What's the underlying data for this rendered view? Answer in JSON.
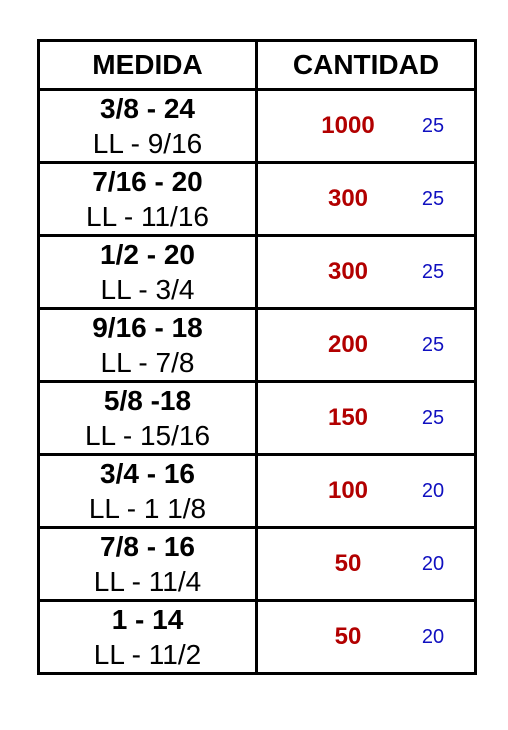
{
  "colors": {
    "border": "#000000",
    "quantity": "#b20000",
    "pack": "#1010c0"
  },
  "table": {
    "headers": [
      "MEDIDA",
      "CANTIDAD"
    ],
    "rows": [
      {
        "measure": "3/8 - 24",
        "wrench": "LL - 9/16",
        "quantity": "1000",
        "pack": "25"
      },
      {
        "measure": "7/16 - 20",
        "wrench": "LL - 11/16",
        "quantity": "300",
        "pack": "25"
      },
      {
        "measure": "1/2 - 20",
        "wrench": "LL - 3/4",
        "quantity": "300",
        "pack": "25"
      },
      {
        "measure": "9/16 - 18",
        "wrench": "LL - 7/8",
        "quantity": "200",
        "pack": "25"
      },
      {
        "measure": "5/8 -18",
        "wrench": "LL - 15/16",
        "quantity": "150",
        "pack": "25"
      },
      {
        "measure": "3/4 - 16",
        "wrench": "LL - 1 1/8",
        "quantity": "100",
        "pack": "20"
      },
      {
        "measure": "7/8 - 16",
        "wrench": "LL - 11/4",
        "quantity": "50",
        "pack": "20"
      },
      {
        "measure": "1 - 14",
        "wrench": "LL - 11/2",
        "quantity": "50",
        "pack": "20"
      }
    ]
  }
}
